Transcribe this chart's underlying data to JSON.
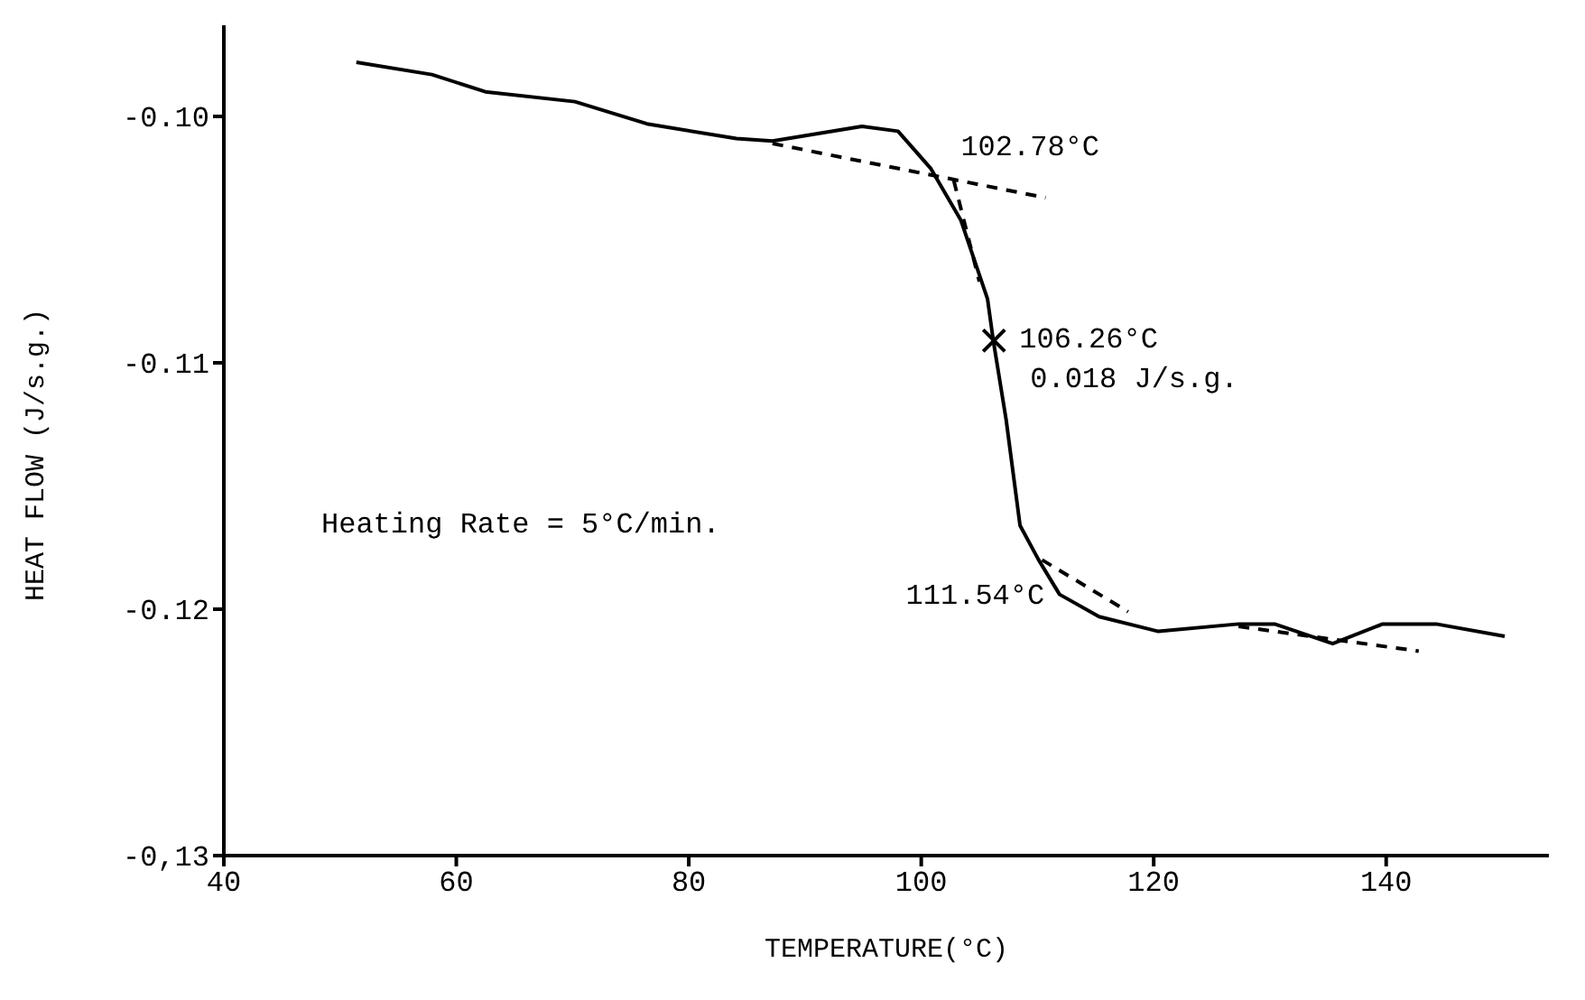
{
  "chart_data": {
    "type": "line",
    "xlabel": "TEMPERATURE(°C)",
    "ylabel": "HEAT FLOW (J/s.g.)",
    "xlim": [
      40,
      154
    ],
    "xticks": [
      40,
      60,
      80,
      100,
      120,
      140
    ],
    "ylim": [
      -0.13,
      -0.0963
    ],
    "yticks": [
      {
        "value": -0.13,
        "label": "-0,13"
      },
      {
        "value": -0.12,
        "label": "-0.12"
      },
      {
        "value": -0.11,
        "label": "-0.11"
      },
      {
        "value": -0.1,
        "label": "-0.10"
      }
    ],
    "grid": false,
    "series": [
      {
        "color": "#000000",
        "line_style": "solid",
        "marker": "none",
        "x": [
          51.4,
          57.9,
          62.5,
          70.2,
          76.4,
          84.1,
          87.2,
          94.9,
          98.0,
          100.8,
          103.4,
          105.7,
          106.2,
          107.3,
          108.5,
          110.1,
          111.9,
          115.3,
          120.4,
          127.3,
          130.4,
          135.4,
          139.7,
          144.3,
          150.2
        ],
        "values": [
          -0.0978,
          -0.0983,
          -0.099,
          -0.0994,
          -0.1003,
          -0.1009,
          -0.101,
          -0.1004,
          -0.1006,
          -0.1021,
          -0.1042,
          -0.1074,
          -0.1091,
          -0.1123,
          -0.1166,
          -0.118,
          -0.1194,
          -0.1203,
          -0.1209,
          -0.1206,
          -0.1206,
          -0.1214,
          -0.1206,
          -0.1206,
          -0.1211
        ]
      },
      {
        "color": "#000000",
        "line_style": "dashed",
        "marker": "none",
        "x": [
          87.2,
          110.7
        ],
        "values": [
          -0.1011,
          -0.1033
        ]
      },
      {
        "color": "#000000",
        "line_style": "dashed",
        "marker": "none",
        "x": [
          102.8,
          105.0
        ],
        "values": [
          -0.1026,
          -0.1067
        ]
      },
      {
        "color": "#000000",
        "line_style": "dashed",
        "marker": "none",
        "x": [
          110.4,
          117.8
        ],
        "values": [
          -0.118,
          -0.1201
        ]
      },
      {
        "color": "#000000",
        "line_style": "dashed",
        "marker": "none",
        "x": [
          127.3,
          142.8
        ],
        "values": [
          -0.1207,
          -0.1217
        ]
      },
      {
        "type": "scatter",
        "color": "#000000",
        "marker": "cross",
        "x": [
          106.26
        ],
        "values": [
          -0.1091
        ]
      }
    ],
    "annotations": [
      {
        "text": "102.78°C",
        "x": 102.78,
        "y": -0.1026
      },
      {
        "text": "106.26°C",
        "x": 106.26,
        "y": -0.1091
      },
      {
        "text": "0.018 J/s.g.",
        "x": 106.26,
        "y": -0.1091
      },
      {
        "text": "111.54°C",
        "x": 111.54,
        "y": -0.1195
      },
      "Heating Rate = 5°C/min."
    ]
  }
}
